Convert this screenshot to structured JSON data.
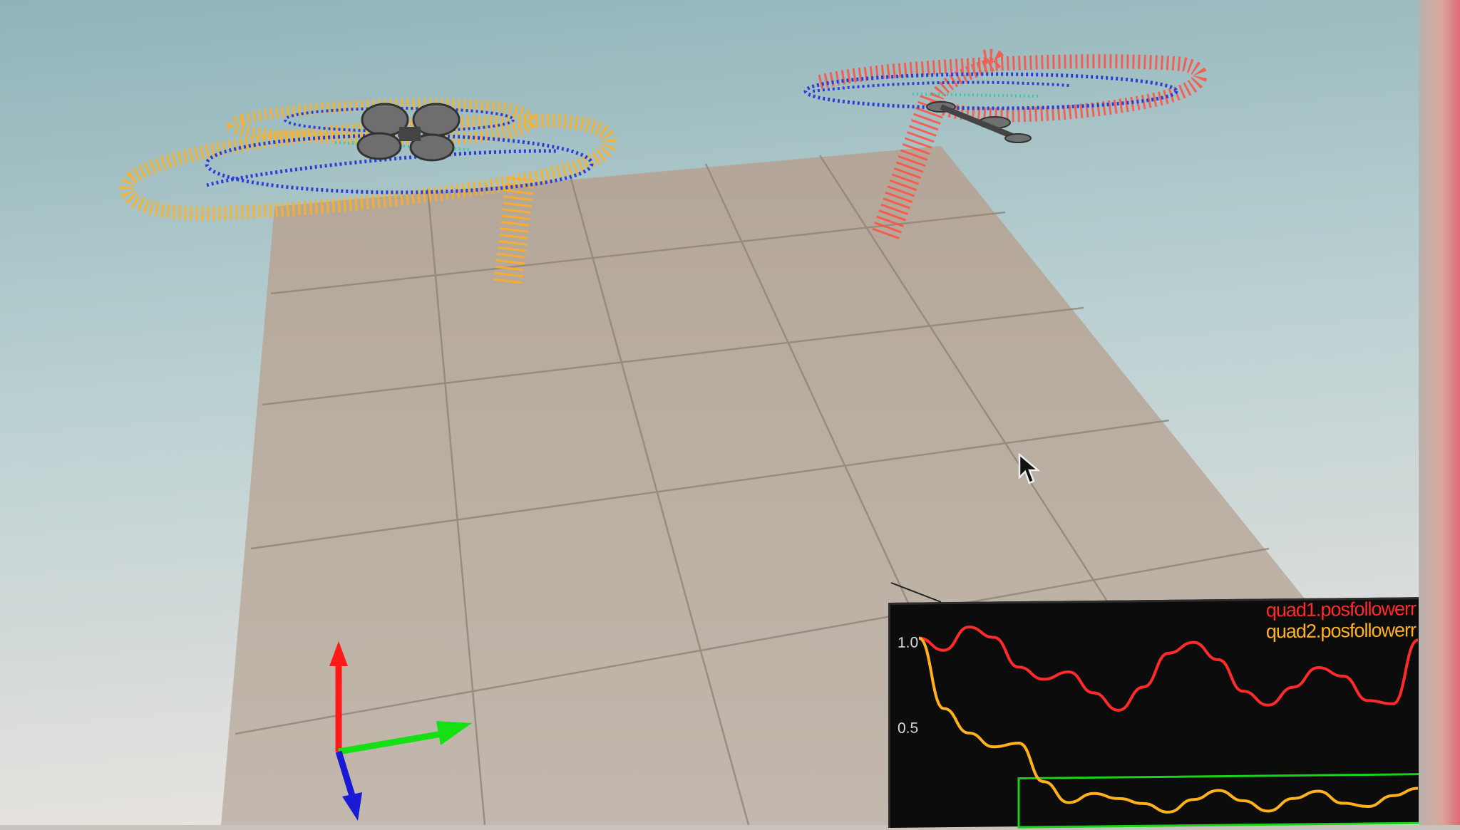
{
  "viewport": {
    "background_top": "#9fbcc0",
    "background_bottom": "#e2ddd8",
    "floor_color": "#b8aca0",
    "grid_color": "#8f8478"
  },
  "trajectories": [
    {
      "name": "quad1",
      "color": "#ff5040",
      "path_color": "#2b3fd6"
    },
    {
      "name": "quad2",
      "color": "#ffb020",
      "path_color": "#2b3fd6"
    }
  ],
  "axes_gizmo": {
    "x_color": "#ff1a1a",
    "y_color": "#14e014",
    "z_color": "#1a1ad6"
  },
  "plot": {
    "legend": [
      "quad1.posfollowerr",
      "quad2.posfollowerr"
    ],
    "yticks": [
      "1.0",
      "0.5"
    ],
    "series_colors": [
      "#ff2a2a",
      "#ffb21c"
    ],
    "threshold_color": "#18d418",
    "chart_data": {
      "type": "line",
      "ylim": [
        0,
        1.15
      ],
      "x": [
        0,
        1,
        2,
        3,
        4,
        5,
        6,
        7,
        8,
        9,
        10,
        11,
        12,
        13,
        14,
        15,
        16,
        17,
        18,
        19,
        20
      ],
      "series": [
        {
          "name": "quad1.posfollowerr",
          "values": [
            1.02,
            0.95,
            1.08,
            1.02,
            0.85,
            0.78,
            0.82,
            0.7,
            0.6,
            0.73,
            0.92,
            0.98,
            0.88,
            0.7,
            0.62,
            0.72,
            0.83,
            0.78,
            0.64,
            0.62,
            0.98
          ]
        },
        {
          "name": "quad2.posfollowerr",
          "values": [
            1.02,
            0.62,
            0.48,
            0.4,
            0.42,
            0.2,
            0.08,
            0.13,
            0.1,
            0.07,
            0.02,
            0.09,
            0.14,
            0.08,
            0.02,
            0.09,
            0.13,
            0.06,
            0.04,
            0.1,
            0.14
          ]
        }
      ],
      "threshold": {
        "value": 0.22,
        "x_start": 4
      }
    }
  }
}
